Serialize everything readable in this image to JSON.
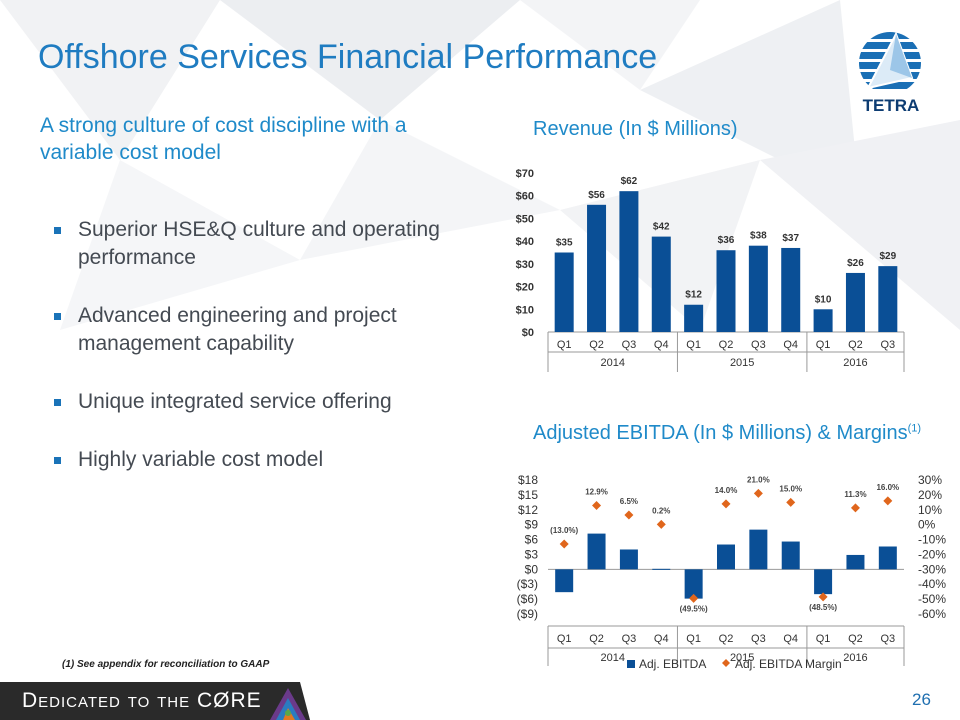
{
  "header": {
    "title": "Offshore Services Financial Performance",
    "logo_text": "TETRA",
    "logo_icon": "tetra-logo-icon"
  },
  "left": {
    "subtitle": "A strong culture of cost discipline with a variable cost model",
    "bullets": [
      "Superior HSE&Q culture and operating performance",
      "Advanced engineering and project management capability",
      "Unique integrated service offering",
      "Highly variable cost model"
    ]
  },
  "chart_titles": {
    "revenue": "Revenue (In $ Millions)",
    "ebitda": "Adjusted EBITDA (In $ Millions) & Margins",
    "ebitda_sup": "(1)"
  },
  "footer": {
    "footnote": "(1) See appendix for reconciliation to GAAP",
    "tagline": "Dedicated to the CØRE",
    "page_number": "26"
  },
  "colors": {
    "bar": "#0a4f96",
    "marker": "#e0661c",
    "title": "#1f7cc1",
    "footer": "#2a2a2a"
  },
  "chart_data": [
    {
      "type": "bar",
      "categories": [
        "Q1",
        "Q2",
        "Q3",
        "Q4",
        "Q1",
        "Q2",
        "Q3",
        "Q4",
        "Q1",
        "Q2",
        "Q3"
      ],
      "groups": [
        {
          "label": "2014",
          "count": 4
        },
        {
          "label": "2015",
          "count": 4
        },
        {
          "label": "2016",
          "count": 3
        }
      ],
      "values": [
        35,
        56,
        62,
        42,
        12,
        36,
        38,
        37,
        10,
        26,
        29
      ],
      "data_labels": [
        "$35",
        "$56",
        "$62",
        "$42",
        "$12",
        "$36",
        "$38",
        "$37",
        "$10",
        "$26",
        "$29"
      ],
      "ylim": [
        0,
        70
      ],
      "y_ticks": [
        0,
        10,
        20,
        30,
        40,
        50,
        60,
        70
      ],
      "y_tick_labels": [
        "$0",
        "$10",
        "$20",
        "$30",
        "$40",
        "$50",
        "$60",
        "$70"
      ]
    },
    {
      "type": "bar",
      "categories": [
        "Q1",
        "Q2",
        "Q3",
        "Q4",
        "Q1",
        "Q2",
        "Q3",
        "Q4",
        "Q1",
        "Q2",
        "Q3"
      ],
      "groups": [
        {
          "label": "2014",
          "count": 4
        },
        {
          "label": "2015",
          "count": 4
        },
        {
          "label": "2016",
          "count": 3
        }
      ],
      "series": [
        {
          "name": "Adj. EBITDA",
          "type": "bar",
          "values": [
            -4.6,
            7.2,
            4.0,
            0.1,
            -5.9,
            5.0,
            8.0,
            5.6,
            -5.0,
            2.9,
            4.6
          ]
        },
        {
          "name": "Adj. EBITDA Margin",
          "type": "scatter",
          "axis": "right",
          "values": [
            -13.0,
            12.9,
            6.5,
            0.2,
            -49.5,
            14.0,
            21.0,
            15.0,
            -48.5,
            11.3,
            16.0
          ],
          "data_labels": [
            "(13.0%)",
            "12.9%",
            "6.5%",
            "0.2%",
            "(49.5%)",
            "14.0%",
            "21.0%",
            "15.0%",
            "(48.5%)",
            "11.3%",
            "16.0%"
          ]
        }
      ],
      "ylim": [
        -9,
        18
      ],
      "y_ticks": [
        -9,
        -6,
        -3,
        0,
        3,
        6,
        9,
        12,
        15,
        18
      ],
      "y_tick_labels": [
        "($9)",
        "($6)",
        "($3)",
        "$0",
        "$3",
        "$6",
        "$9",
        "$12",
        "$15",
        "$18"
      ],
      "y2lim": [
        -60,
        30
      ],
      "y2_ticks": [
        -60,
        -50,
        -40,
        -30,
        -20,
        -10,
        0,
        10,
        20,
        30
      ],
      "y2_tick_labels": [
        "-60%",
        "-50%",
        "-40%",
        "-30%",
        "-20%",
        "-10%",
        "0%",
        "10%",
        "20%",
        "30%"
      ],
      "legend": "bottom"
    }
  ]
}
